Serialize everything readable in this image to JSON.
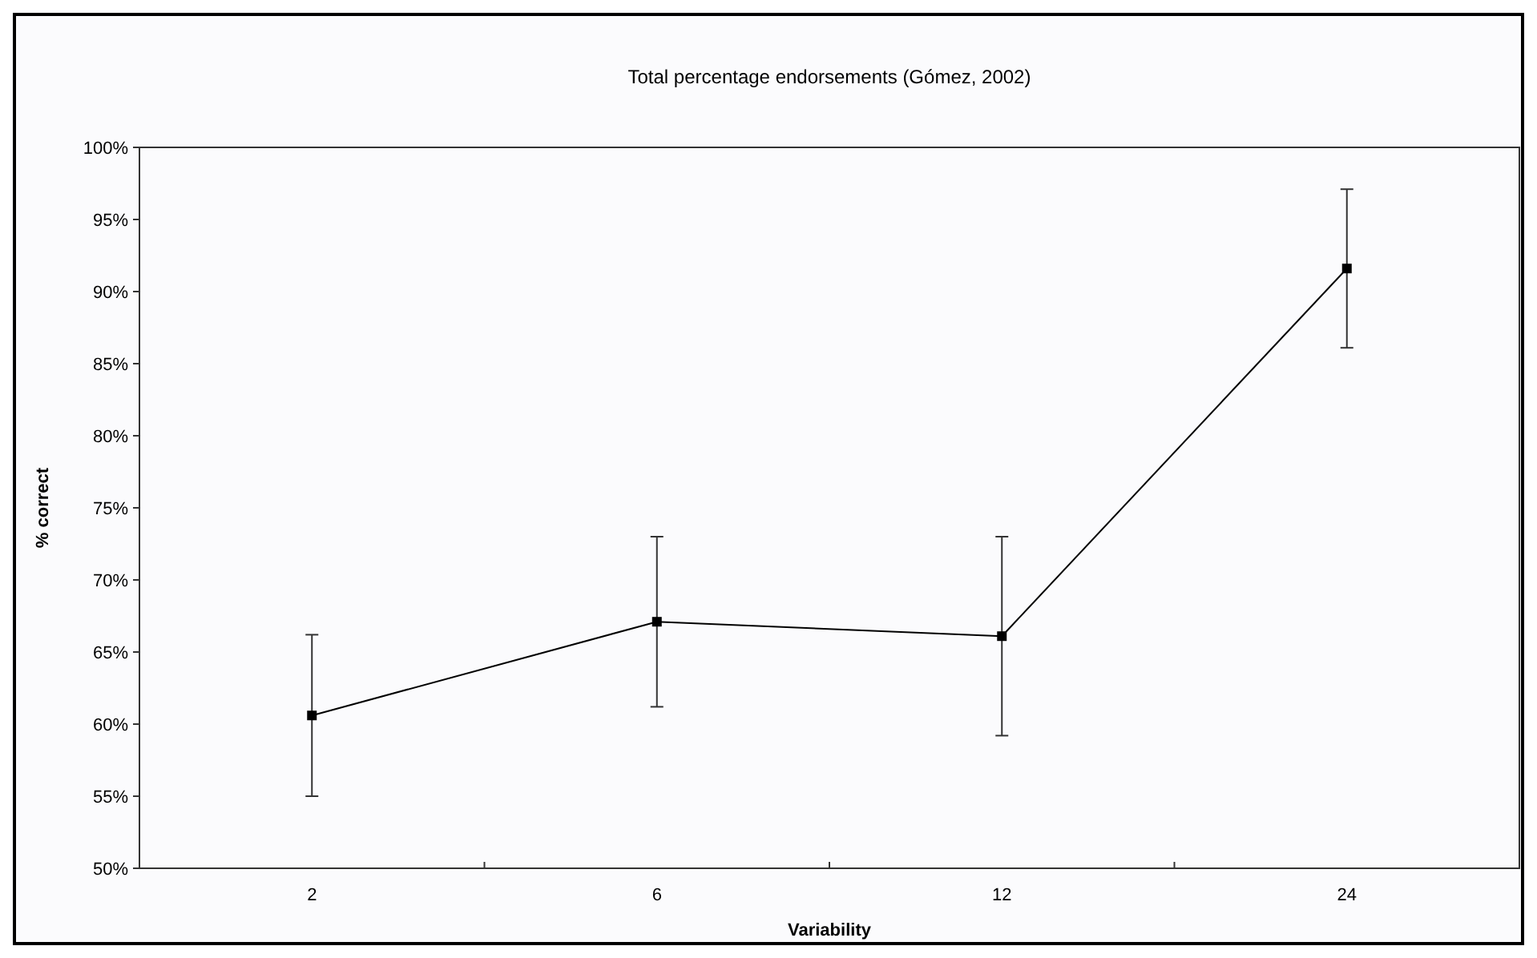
{
  "chart_data": {
    "type": "line",
    "title": "Total percentage endorsements (Gómez, 2002)",
    "xlabel": "Variability",
    "ylabel": "% correct",
    "categories": [
      "2",
      "6",
      "12",
      "24"
    ],
    "series": [
      {
        "color": "#000000",
        "values": [
          60.6,
          67.1,
          66.1,
          91.6
        ],
        "errors": [
          5.6,
          5.9,
          6.9,
          5.5
        ]
      }
    ],
    "ylim": [
      50,
      100
    ],
    "yticks": [
      {
        "value": 50,
        "label": "50%"
      },
      {
        "value": 55,
        "label": "55%"
      },
      {
        "value": 60,
        "label": "60%"
      },
      {
        "value": 65,
        "label": "65%"
      },
      {
        "value": 70,
        "label": "70%"
      },
      {
        "value": 75,
        "label": "75%"
      },
      {
        "value": 80,
        "label": "80%"
      },
      {
        "value": 85,
        "label": "85%"
      },
      {
        "value": 90,
        "label": "90%"
      },
      {
        "value": 95,
        "label": "95%"
      },
      {
        "value": 100,
        "label": "100%"
      }
    ],
    "marker": "square",
    "line_style": "solid"
  }
}
